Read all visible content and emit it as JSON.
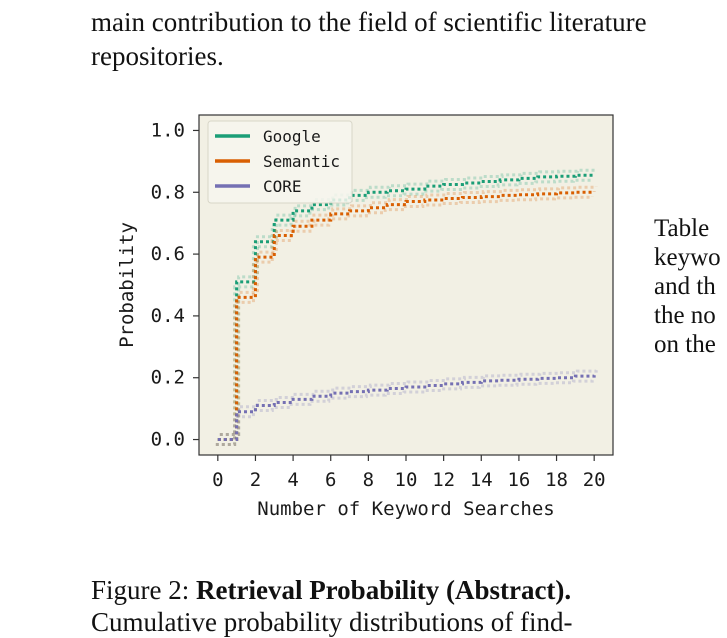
{
  "body_text": {
    "line1": "main contribution to the field of scientific literature",
    "line2": "repositories."
  },
  "side_text": [
    "Table",
    "keywo",
    "and th",
    "the no",
    "on the"
  ],
  "caption": {
    "prefix": "Figure 2: ",
    "title": "Retrieval Probability (Abstract).",
    "line2": "Cumulative probability distributions of find-"
  },
  "colors": {
    "plot_bg": "#f2f0e4",
    "google": "#1b9e77",
    "semantic": "#d95f02",
    "core": "#7570b3"
  },
  "chart_data": {
    "type": "line",
    "xlabel": "Number of Keyword Searches",
    "ylabel": "Probability",
    "xlim": [
      -1,
      21
    ],
    "ylim": [
      -0.05,
      1.05
    ],
    "x_ticks": [
      0,
      2,
      4,
      6,
      8,
      10,
      12,
      14,
      16,
      18,
      20
    ],
    "y_ticks": [
      "0.0",
      "0.2",
      "0.4",
      "0.6",
      "0.8",
      "1.0"
    ],
    "y_tick_values": [
      0,
      0.2,
      0.4,
      0.6,
      0.8,
      1.0
    ],
    "legend_position": "top-left",
    "step": true,
    "x": [
      0,
      1,
      2,
      3,
      4,
      5,
      6,
      7,
      8,
      9,
      10,
      11,
      12,
      13,
      14,
      15,
      16,
      17,
      18,
      19,
      20
    ],
    "series": [
      {
        "name": "Google",
        "values": [
          0.0,
          0.51,
          0.64,
          0.71,
          0.74,
          0.76,
          0.775,
          0.79,
          0.8,
          0.805,
          0.81,
          0.82,
          0.825,
          0.83,
          0.835,
          0.84,
          0.845,
          0.85,
          0.852,
          0.855,
          0.856
        ]
      },
      {
        "name": "Semantic",
        "values": [
          0.0,
          0.46,
          0.59,
          0.66,
          0.69,
          0.71,
          0.73,
          0.74,
          0.75,
          0.76,
          0.77,
          0.775,
          0.78,
          0.783,
          0.786,
          0.79,
          0.792,
          0.795,
          0.798,
          0.8,
          0.802
        ]
      },
      {
        "name": "CORE",
        "values": [
          0.0,
          0.09,
          0.11,
          0.12,
          0.13,
          0.14,
          0.15,
          0.155,
          0.16,
          0.165,
          0.17,
          0.175,
          0.18,
          0.185,
          0.19,
          0.192,
          0.195,
          0.198,
          0.2,
          0.205,
          0.208
        ]
      }
    ]
  }
}
